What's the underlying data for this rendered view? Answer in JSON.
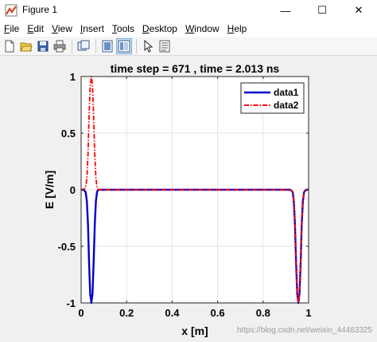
{
  "window": {
    "title": "Figure 1",
    "minimize_glyph": "—",
    "maximize_glyph": "☐",
    "close_glyph": "✕"
  },
  "menu": {
    "items": [
      {
        "key": "file",
        "ul": "F",
        "rest": "ile"
      },
      {
        "key": "edit",
        "ul": "E",
        "rest": "dit"
      },
      {
        "key": "view",
        "ul": "V",
        "rest": "iew"
      },
      {
        "key": "insert",
        "ul": "I",
        "rest": "nsert"
      },
      {
        "key": "tools",
        "ul": "T",
        "rest": "ools"
      },
      {
        "key": "desktop",
        "ul": "D",
        "rest": "esktop"
      },
      {
        "key": "window",
        "ul": "W",
        "rest": "indow"
      },
      {
        "key": "help",
        "ul": "H",
        "rest": "elp"
      }
    ]
  },
  "toolbar": {
    "icons": [
      "new-figure-icon",
      "open-file-icon",
      "save-icon",
      "print-icon",
      "link-plot-icon",
      "hide-plot-tools-icon",
      "show-plot-tools-icon",
      "edit-plot-icon",
      "property-inspector-icon"
    ]
  },
  "colors": {
    "data1": "#0000cc",
    "data2": "#ff0000",
    "grid": "#e6e6e6"
  },
  "chart_data": {
    "type": "line",
    "title": "time step = 671 , time = 2.013 ns",
    "xlabel": "x [m]",
    "ylabel": "E [V/m]",
    "xlim": [
      0,
      1
    ],
    "ylim": [
      -1,
      1
    ],
    "xticks": [
      0,
      0.2,
      0.4,
      0.6,
      0.8,
      1
    ],
    "xtick_labels": [
      "0",
      "0.2",
      "0.4",
      "0.6",
      "0.8",
      "1"
    ],
    "yticks": [
      -1,
      -0.5,
      0,
      0.5,
      1
    ],
    "ytick_labels": [
      "-1",
      "-0.5",
      "0",
      "0.5",
      "1"
    ],
    "grid": true,
    "legend": "top-right",
    "series": [
      {
        "name": "data1",
        "style": "solid",
        "x": [
          0,
          0.01,
          0.02,
          0.025,
          0.03,
          0.035,
          0.04,
          0.045,
          0.05,
          0.055,
          0.06,
          0.065,
          0.07,
          0.075,
          0.08,
          0.1,
          0.3,
          0.5,
          0.7,
          0.9,
          0.92,
          0.93,
          0.935,
          0.94,
          0.945,
          0.95,
          0.955,
          0.96,
          0.965,
          0.97,
          0.975,
          0.98,
          0.99,
          1
        ],
        "y": [
          0,
          0,
          -0.02,
          -0.1,
          -0.3,
          -0.65,
          -0.92,
          -1,
          -0.92,
          -0.65,
          -0.3,
          -0.1,
          -0.02,
          0,
          0,
          0,
          0,
          0,
          0,
          0,
          0,
          -0.02,
          -0.1,
          -0.3,
          -0.65,
          -0.92,
          -1,
          -0.92,
          -0.65,
          -0.3,
          -0.1,
          -0.02,
          0,
          0
        ]
      },
      {
        "name": "data2",
        "style": "dashdot",
        "x": [
          0,
          0.01,
          0.02,
          0.025,
          0.03,
          0.035,
          0.04,
          0.045,
          0.05,
          0.055,
          0.06,
          0.065,
          0.07,
          0.075,
          0.08,
          0.1,
          0.3,
          0.5,
          0.7,
          0.9,
          0.92,
          0.93,
          0.935,
          0.94,
          0.945,
          0.95,
          0.955,
          0.96,
          0.965,
          0.97,
          0.975,
          0.98,
          0.99,
          1
        ],
        "y": [
          0,
          0,
          0.02,
          0.1,
          0.3,
          0.65,
          0.92,
          1,
          0.92,
          0.65,
          0.3,
          0.1,
          0.02,
          0,
          0,
          0,
          0,
          0,
          0,
          0,
          0,
          -0.02,
          -0.1,
          -0.3,
          -0.65,
          -0.92,
          -1,
          -0.92,
          -0.65,
          -0.3,
          -0.1,
          -0.02,
          0,
          0
        ]
      }
    ]
  },
  "watermark": "https://blog.csdn.net/weixin_44483325"
}
